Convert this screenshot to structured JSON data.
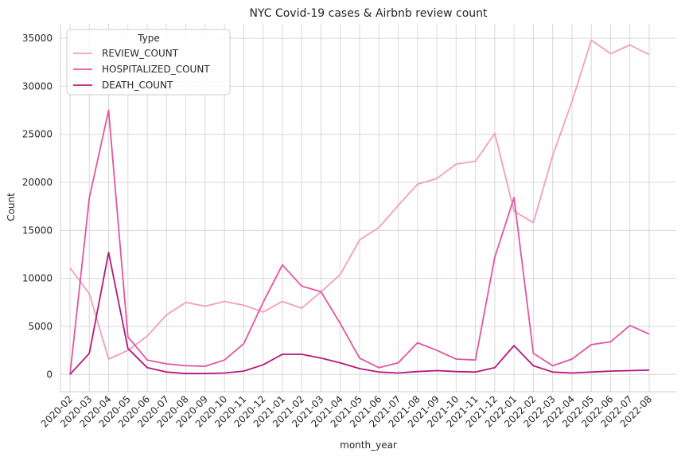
{
  "chart_data": {
    "type": "line",
    "title": "NYC Covid-19 cases & Airbnb review count",
    "xlabel": "month_year",
    "ylabel": "Count",
    "ylim": [
      -1800,
      36500
    ],
    "yticks": [
      0,
      5000,
      10000,
      15000,
      20000,
      25000,
      30000,
      35000
    ],
    "grid": true,
    "legend": {
      "title": "Type",
      "placement": "top-left"
    },
    "categories": [
      "2020-02",
      "2020-03",
      "2020-04",
      "2020-05",
      "2020-06",
      "2020-07",
      "2020-08",
      "2020-09",
      "2020-10",
      "2020-11",
      "2020-12",
      "2021-01",
      "2021-02",
      "2021-03",
      "2021-04",
      "2021-05",
      "2021-06",
      "2021-07",
      "2021-08",
      "2021-09",
      "2021-10",
      "2021-11",
      "2021-12",
      "2022-01",
      "2022-02",
      "2022-03",
      "2022-04",
      "2022-05",
      "2022-06",
      "2022-07",
      "2022-08"
    ],
    "series": [
      {
        "name": "REVIEW_COUNT",
        "color": "#f29ec0",
        "values": [
          11100,
          8400,
          1600,
          2500,
          4000,
          6200,
          7500,
          7100,
          7600,
          7200,
          6500,
          7600,
          6900,
          8600,
          10400,
          14000,
          15300,
          17600,
          19800,
          20400,
          21900,
          22200,
          25100,
          17000,
          15800,
          22800,
          28400,
          34800,
          33400,
          34300,
          33300
        ]
      },
      {
        "name": "HOSPITALIZED_COUNT",
        "color": "#e4559f",
        "values": [
          0,
          18400,
          27500,
          3900,
          1500,
          1100,
          900,
          850,
          1500,
          3200,
          7500,
          11400,
          9200,
          8600,
          5300,
          1700,
          700,
          1200,
          3300,
          2500,
          1600,
          1500,
          12200,
          18400,
          2200,
          900,
          1600,
          3100,
          3400,
          5100,
          4200
        ]
      },
      {
        "name": "DEATH_COUNT",
        "color": "#b5167e",
        "values": [
          0,
          2200,
          12700,
          2700,
          700,
          250,
          100,
          100,
          150,
          350,
          1000,
          2100,
          2100,
          1700,
          1200,
          600,
          250,
          150,
          300,
          400,
          300,
          250,
          700,
          3000,
          900,
          250,
          150,
          250,
          350,
          400,
          450
        ]
      }
    ]
  }
}
